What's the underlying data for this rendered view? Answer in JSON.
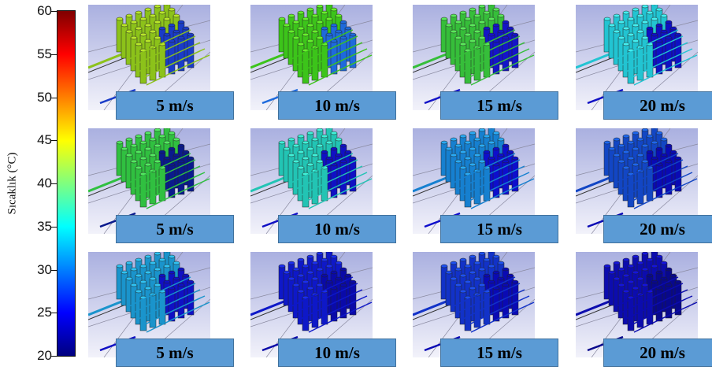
{
  "colorbar": {
    "label": "Sıcaklık (°C)",
    "min": 20,
    "max": 60,
    "ticks": [
      "60",
      "55",
      "50",
      "45",
      "40",
      "35",
      "30",
      "25",
      "20"
    ],
    "tick_values": [
      60,
      55,
      50,
      45,
      40,
      35,
      30,
      25,
      20
    ],
    "colormap": [
      "#00007f",
      "#0000ff",
      "#007fff",
      "#00ffff",
      "#7fff7f",
      "#ffff00",
      "#ff7f00",
      "#ff0000",
      "#7f0000"
    ]
  },
  "rows": [
    {
      "panels": [
        {
          "speed": "5 m/s",
          "colors": {
            "top": "#b8e62a",
            "side": "#8cc21a",
            "dark": "#1a3cc8"
          }
        },
        {
          "speed": "10 m/s",
          "colors": {
            "top": "#66f02c",
            "side": "#3cc41a",
            "dark": "#1e6adc"
          }
        },
        {
          "speed": "15 m/s",
          "colors": {
            "top": "#5ae85a",
            "side": "#36be3a",
            "dark": "#1414c8"
          }
        },
        {
          "speed": "20 m/s",
          "colors": {
            "top": "#44eef0",
            "side": "#22c4d2",
            "dark": "#1010c4"
          }
        }
      ]
    },
    {
      "panels": [
        {
          "speed": "5 m/s",
          "colors": {
            "top": "#52e860",
            "side": "#30c040",
            "dark": "#0a1a8c"
          }
        },
        {
          "speed": "10 m/s",
          "colors": {
            "top": "#40f0d8",
            "side": "#22c4b4",
            "dark": "#1010c4"
          }
        },
        {
          "speed": "15 m/s",
          "colors": {
            "top": "#2aaaf4",
            "side": "#1680d0",
            "dark": "#0e0ecc"
          }
        },
        {
          "speed": "20 m/s",
          "colors": {
            "top": "#1e66ee",
            "side": "#1246c4",
            "dark": "#0a0ab4"
          }
        }
      ]
    },
    {
      "panels": [
        {
          "speed": "5 m/s",
          "colors": {
            "top": "#30c2f2",
            "side": "#1a94cc",
            "dark": "#1010c4"
          }
        },
        {
          "speed": "10 m/s",
          "colors": {
            "top": "#1a2ef0",
            "side": "#0e18c8",
            "dark": "#0a0aa8"
          }
        },
        {
          "speed": "15 m/s",
          "colors": {
            "top": "#1e50f0",
            "side": "#1232c8",
            "dark": "#0a0ab4"
          }
        },
        {
          "speed": "20 m/s",
          "colors": {
            "top": "#1414dc",
            "side": "#0c0cae",
            "dark": "#08088c"
          }
        }
      ]
    }
  ]
}
